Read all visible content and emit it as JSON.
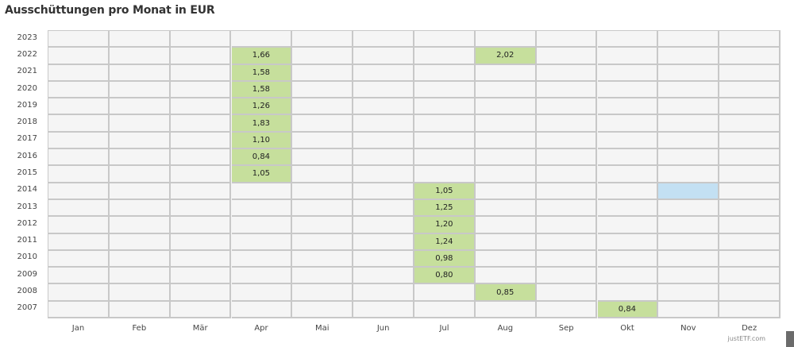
{
  "chart_data": {
    "type": "heatmap",
    "title": "Ausschüttungen pro Monat in EUR",
    "xlabel": "",
    "ylabel": "",
    "categories": [
      "Jan",
      "Feb",
      "Mär",
      "Apr",
      "Mai",
      "Jun",
      "Jul",
      "Aug",
      "Sep",
      "Okt",
      "Nov",
      "Dez"
    ],
    "years": [
      "2023",
      "2022",
      "2021",
      "2020",
      "2019",
      "2018",
      "2017",
      "2016",
      "2015",
      "2014",
      "2013",
      "2012",
      "2011",
      "2010",
      "2009",
      "2008",
      "2007"
    ],
    "points": [
      {
        "year": "2022",
        "month": "Apr",
        "value": "1,66"
      },
      {
        "year": "2022",
        "month": "Aug",
        "value": "2,02"
      },
      {
        "year": "2021",
        "month": "Apr",
        "value": "1,58"
      },
      {
        "year": "2020",
        "month": "Apr",
        "value": "1,58"
      },
      {
        "year": "2019",
        "month": "Apr",
        "value": "1,26"
      },
      {
        "year": "2018",
        "month": "Apr",
        "value": "1,83"
      },
      {
        "year": "2017",
        "month": "Apr",
        "value": "1,10"
      },
      {
        "year": "2016",
        "month": "Apr",
        "value": "0,84"
      },
      {
        "year": "2015",
        "month": "Apr",
        "value": "1,05"
      },
      {
        "year": "2014",
        "month": "Jul",
        "value": "1,05"
      },
      {
        "year": "2013",
        "month": "Jul",
        "value": "1,25"
      },
      {
        "year": "2012",
        "month": "Jul",
        "value": "1,20"
      },
      {
        "year": "2011",
        "month": "Jul",
        "value": "1,24"
      },
      {
        "year": "2010",
        "month": "Jul",
        "value": "0,98"
      },
      {
        "year": "2009",
        "month": "Jul",
        "value": "0,80"
      },
      {
        "year": "2008",
        "month": "Aug",
        "value": "0,85"
      },
      {
        "year": "2007",
        "month": "Okt",
        "value": "0,84"
      }
    ],
    "highlighted": [
      {
        "year": "2014",
        "month": "Nov",
        "color": "#c3e0f3"
      }
    ],
    "colors": {
      "value_cell": "#c6df9c",
      "highlight_cell": "#c3e0f3",
      "empty_cell": "#f5f5f5",
      "grid": "#c8c8c8"
    },
    "legend": []
  },
  "credits": "justETF.com"
}
